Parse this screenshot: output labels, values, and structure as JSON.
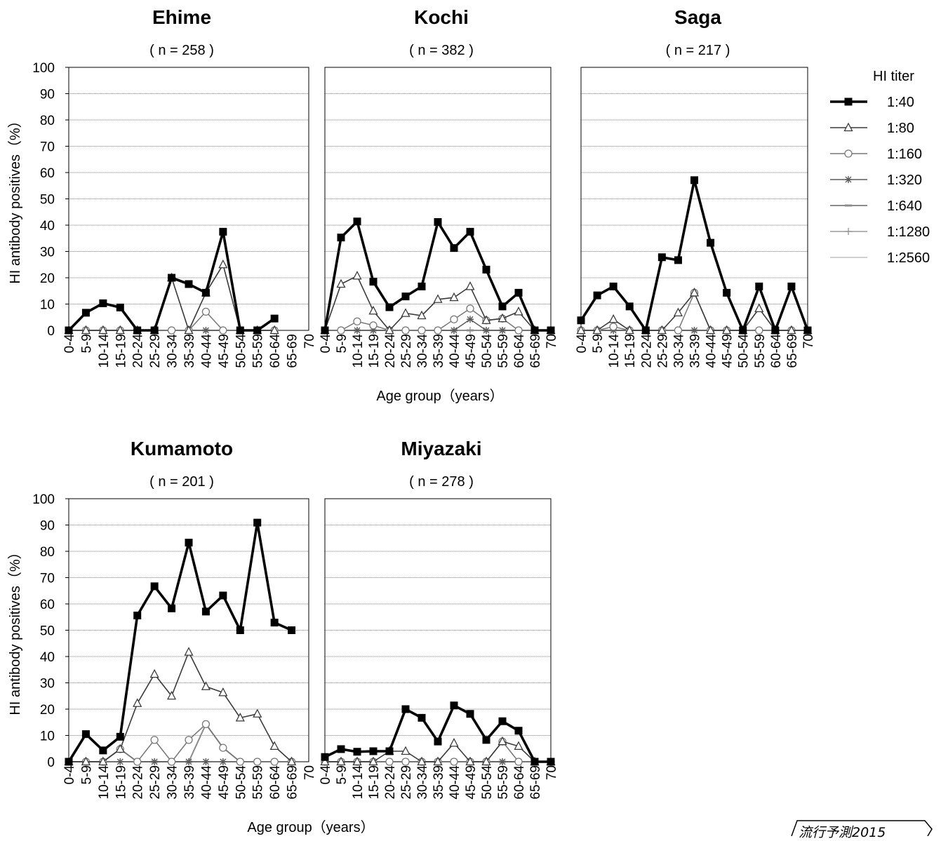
{
  "chart_data": [
    {
      "type": "line",
      "title": "Ehime",
      "subtitle": "( n = 258 )",
      "xlabel": "",
      "ylabel": "HI antibody positives（%）",
      "ylim": [
        0,
        100
      ],
      "categories": [
        "0-4",
        "5-9",
        "10-14",
        "15-19",
        "20-24",
        "25-29",
        "30-34",
        "35-39",
        "40-44",
        "45-49",
        "50-54",
        "55-59",
        "60-64",
        "65-69",
        "70"
      ],
      "series": [
        {
          "name": "1:40",
          "values": [
            0,
            6.7,
            10.3,
            8.7,
            0,
            0,
            20,
            17.6,
            14.3,
            37.5,
            0,
            0,
            4.5,
            null,
            null
          ]
        },
        {
          "name": "1:80",
          "values": [
            0,
            0,
            0,
            0,
            0,
            0,
            20,
            0,
            14.3,
            25,
            0,
            0,
            0,
            null,
            null
          ]
        },
        {
          "name": "1:160",
          "values": [
            0,
            0,
            0,
            0,
            0,
            0,
            0,
            0,
            7.1,
            0,
            0,
            0,
            0,
            null,
            null
          ]
        },
        {
          "name": "1:320",
          "values": [
            0,
            0,
            0,
            0,
            0,
            0,
            0,
            0,
            0,
            0,
            0,
            0,
            0,
            null,
            null
          ]
        },
        {
          "name": "1:640",
          "values": [
            0,
            0,
            0,
            0,
            0,
            0,
            0,
            0,
            0,
            0,
            0,
            0,
            0,
            null,
            null
          ]
        },
        {
          "name": "1:1280",
          "values": [
            0,
            0,
            0,
            0,
            0,
            0,
            0,
            0,
            0,
            0,
            0,
            0,
            0,
            null,
            null
          ]
        },
        {
          "name": "1:2560",
          "values": [
            0,
            0,
            0,
            0,
            0,
            0,
            0,
            0,
            0,
            0,
            0,
            0,
            0,
            null,
            null
          ]
        }
      ]
    },
    {
      "type": "line",
      "title": "Kochi",
      "subtitle": "( n = 382 )",
      "xlabel": "Age group（years）",
      "ylabel": "",
      "ylim": [
        0,
        100
      ],
      "categories": [
        "0-4",
        "5-9",
        "10-14",
        "15-19",
        "20-24",
        "25-29",
        "30-34",
        "35-39",
        "40-44",
        "45-49",
        "50-54",
        "55-59",
        "60-64",
        "65-69",
        "70"
      ],
      "series": [
        {
          "name": "1:40",
          "values": [
            0,
            35.3,
            41.4,
            18.5,
            8.8,
            12.9,
            16.7,
            41.2,
            31.3,
            37.5,
            23.1,
            9.1,
            14.3,
            0,
            0
          ]
        },
        {
          "name": "1:80",
          "values": [
            0,
            17.6,
            20.7,
            7.4,
            0,
            6.5,
            5.6,
            11.8,
            12.5,
            16.7,
            3.8,
            4.5,
            7.1,
            0,
            0
          ]
        },
        {
          "name": "1:160",
          "values": [
            0,
            0,
            3.4,
            1.9,
            0,
            0,
            0,
            0,
            4.2,
            8.3,
            3.8,
            4.5,
            0,
            0,
            0
          ]
        },
        {
          "name": "1:320",
          "values": [
            0,
            0,
            0,
            0,
            0,
            0,
            0,
            0,
            0,
            4.2,
            0,
            0,
            0,
            0,
            0
          ]
        },
        {
          "name": "1:640",
          "values": [
            0,
            0,
            0,
            0,
            0,
            0,
            0,
            0,
            0,
            0,
            0,
            0,
            0,
            0,
            0
          ]
        },
        {
          "name": "1:1280",
          "values": [
            0,
            0,
            0,
            0,
            0,
            0,
            0,
            0,
            0,
            0,
            0,
            0,
            0,
            0,
            0
          ]
        },
        {
          "name": "1:2560",
          "values": [
            0,
            0,
            0,
            0,
            0,
            0,
            0,
            0,
            0,
            0,
            0,
            0,
            0,
            0,
            0
          ]
        }
      ]
    },
    {
      "type": "line",
      "title": "Saga",
      "subtitle": "( n = 217 )",
      "xlabel": "",
      "ylabel": "",
      "ylim": [
        0,
        100
      ],
      "categories": [
        "0-4",
        "5-9",
        "10-14",
        "15-19",
        "20-24",
        "25-29",
        "30-34",
        "35-39",
        "40-44",
        "45-49",
        "50-54",
        "55-59",
        "60-64",
        "65-69",
        "70"
      ],
      "series": [
        {
          "name": "1:40",
          "values": [
            3.8,
            13.3,
            16.7,
            9.1,
            0,
            27.8,
            26.7,
            57.1,
            33.3,
            14.3,
            0,
            16.7,
            0,
            16.7,
            0
          ]
        },
        {
          "name": "1:80",
          "values": [
            0,
            0,
            4.2,
            0,
            0,
            0,
            6.7,
            14.3,
            0,
            0,
            0,
            8.3,
            0,
            0,
            0
          ]
        },
        {
          "name": "1:160",
          "values": [
            0,
            0,
            1.4,
            0,
            0,
            0,
            0,
            14.3,
            0,
            0,
            0,
            0,
            0,
            0,
            0
          ]
        },
        {
          "name": "1:320",
          "values": [
            0,
            0,
            0,
            0,
            0,
            0,
            0,
            0,
            0,
            0,
            0,
            0,
            0,
            0,
            0
          ]
        },
        {
          "name": "1:640",
          "values": [
            0,
            0,
            0,
            0,
            0,
            0,
            0,
            0,
            0,
            0,
            0,
            0,
            0,
            0,
            0
          ]
        },
        {
          "name": "1:1280",
          "values": [
            0,
            0,
            0,
            0,
            0,
            0,
            0,
            0,
            0,
            0,
            0,
            0,
            0,
            0,
            0
          ]
        },
        {
          "name": "1:2560",
          "values": [
            0,
            0,
            0,
            0,
            0,
            0,
            0,
            0,
            0,
            0,
            0,
            0,
            0,
            0,
            0
          ]
        }
      ]
    },
    {
      "type": "line",
      "title": "Kumamoto",
      "subtitle": "( n = 201 )",
      "xlabel": "Age group（years）",
      "ylabel": "HI antibody positives（%）",
      "ylim": [
        0,
        100
      ],
      "categories": [
        "0-4",
        "5-9",
        "10-14",
        "15-19",
        "20-24",
        "25-29",
        "30-34",
        "35-39",
        "40-44",
        "45-49",
        "50-54",
        "55-59",
        "60-64",
        "65-69",
        "70"
      ],
      "series": [
        {
          "name": "1:40",
          "values": [
            0,
            10.5,
            4.3,
            9.5,
            55.6,
            66.7,
            58.3,
            83.3,
            57.1,
            63.2,
            50,
            90.9,
            52.9,
            50,
            null
          ]
        },
        {
          "name": "1:80",
          "values": [
            0,
            0,
            0,
            4.8,
            22.2,
            33.3,
            25,
            41.7,
            28.6,
            26.3,
            16.7,
            18.2,
            5.9,
            0,
            null
          ]
        },
        {
          "name": "1:160",
          "values": [
            0,
            0,
            0,
            4.8,
            0,
            8.3,
            0,
            8.3,
            14.3,
            5.3,
            0,
            0,
            0,
            0,
            null
          ]
        },
        {
          "name": "1:320",
          "values": [
            0,
            0,
            0,
            0,
            0,
            0,
            0,
            0,
            0,
            0,
            0,
            0,
            0,
            0,
            null
          ]
        },
        {
          "name": "1:640",
          "values": [
            0,
            0,
            0,
            4.8,
            0,
            0,
            0,
            0,
            14.3,
            5.3,
            0,
            0,
            0,
            0,
            null
          ]
        },
        {
          "name": "1:1280",
          "values": [
            0,
            0,
            0,
            0,
            0,
            0,
            0,
            0,
            0,
            0,
            0,
            0,
            0,
            0,
            null
          ]
        },
        {
          "name": "1:2560",
          "values": [
            0,
            0,
            0,
            0,
            0,
            0,
            0,
            0,
            0,
            0,
            0,
            0,
            0,
            0,
            null
          ]
        }
      ]
    },
    {
      "type": "line",
      "title": "Miyazaki",
      "subtitle": "( n = 278 )",
      "xlabel": "",
      "ylabel": "",
      "ylim": [
        0,
        100
      ],
      "categories": [
        "0-4",
        "5-9",
        "10-14",
        "15-19",
        "20-24",
        "25-29",
        "30-34",
        "35-39",
        "40-44",
        "45-49",
        "50-54",
        "55-59",
        "60-64",
        "65-69",
        "70"
      ],
      "series": [
        {
          "name": "1:40",
          "values": [
            1.8,
            4.8,
            3.8,
            4,
            4,
            20,
            16.7,
            7.7,
            21.4,
            18.2,
            8.3,
            15.4,
            11.8,
            0,
            0
          ]
        },
        {
          "name": "1:80",
          "values": [
            0,
            0,
            0,
            0,
            4,
            4,
            0,
            0,
            7.1,
            0,
            0,
            7.7,
            5.9,
            0,
            0
          ]
        },
        {
          "name": "1:160",
          "values": [
            0,
            0,
            0,
            0,
            0,
            0,
            0,
            0,
            0,
            0,
            0,
            7.7,
            0,
            0,
            0
          ]
        },
        {
          "name": "1:320",
          "values": [
            0,
            0,
            0,
            0,
            0,
            0,
            0,
            0,
            0,
            0,
            0,
            0,
            0,
            0,
            0
          ]
        },
        {
          "name": "1:640",
          "values": [
            0,
            0,
            0,
            0,
            0,
            0,
            0,
            0,
            0,
            0,
            0,
            0,
            0,
            0,
            0
          ]
        },
        {
          "name": "1:1280",
          "values": [
            0,
            0,
            0,
            0,
            0,
            0,
            0,
            0,
            0,
            0,
            0,
            0,
            0,
            0,
            0
          ]
        },
        {
          "name": "1:2560",
          "values": [
            0,
            0,
            0,
            0,
            0,
            0,
            0,
            0,
            0,
            0,
            0,
            0,
            0,
            0,
            0
          ]
        }
      ]
    }
  ],
  "legend": {
    "title": "HI titer",
    "placement": "right",
    "items": [
      {
        "label": "1:40",
        "color": "#000000",
        "marker": "square"
      },
      {
        "label": "1:80",
        "color": "#3a3a3a",
        "marker": "triangle"
      },
      {
        "label": "1:160",
        "color": "#777777",
        "marker": "circle"
      },
      {
        "label": "1:320",
        "color": "#5a5a5a",
        "marker": "asterisk"
      },
      {
        "label": "1:640",
        "color": "#8c8c8c",
        "marker": "dash"
      },
      {
        "label": "1:1280",
        "color": "#9a9a9a",
        "marker": "plus"
      },
      {
        "label": "1:2560",
        "color": "#c0c0c0",
        "marker": "none"
      }
    ]
  },
  "yticks": [
    0,
    10,
    20,
    30,
    40,
    50,
    60,
    70,
    80,
    90,
    100
  ],
  "badge": {
    "text": "流行予測2015"
  }
}
